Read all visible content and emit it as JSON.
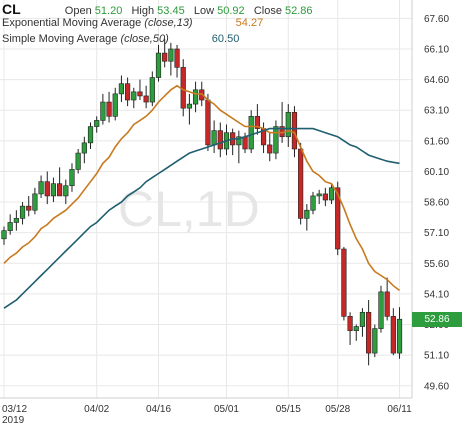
{
  "header": {
    "symbol": "CL",
    "open_label": "Open",
    "open_value": "51.20",
    "high_label": "High",
    "high_value": "53.45",
    "low_label": "Low",
    "low_value": "50.92",
    "close_label": "Close",
    "close_value": "52.86",
    "ema_label": "Exponential Moving Average",
    "ema_params": "(close,13)",
    "ema_value": "54.27",
    "sma_label": "Simple Moving Average",
    "sma_params": "(close,50)",
    "sma_value": "60.50"
  },
  "watermark": "CL,1D",
  "last_price_badge": "52.86",
  "colors": {
    "up": "#2e9d3e",
    "down": "#c62828",
    "ema": "#c87a1f",
    "sma": "#1f5f70",
    "grid": "#e8e8e8",
    "badge": "#2e9d3e"
  },
  "chart_data": {
    "type": "candlestick",
    "title": "CL",
    "xlabel": "",
    "ylabel": "",
    "ylim": [
      49.0,
      68.5
    ],
    "y_ticks": [
      "67.60",
      "66.10",
      "64.60",
      "63.10",
      "61.60",
      "60.10",
      "58.60",
      "57.10",
      "55.60",
      "54.10",
      "52.60",
      "51.10",
      "49.60"
    ],
    "x_ticks": [
      {
        "label": "03/12",
        "sub": "2019",
        "index": 0
      },
      {
        "label": "04/02",
        "index": 15
      },
      {
        "label": "04/16",
        "index": 25
      },
      {
        "label": "05/01",
        "index": 36
      },
      {
        "label": "05/15",
        "index": 46
      },
      {
        "label": "05/28",
        "index": 54
      },
      {
        "label": "06/11",
        "index": 64
      }
    ],
    "candles": [
      [
        56.8,
        57.4,
        56.5,
        57.2
      ],
      [
        57.2,
        58.0,
        57.0,
        57.6
      ],
      [
        57.6,
        58.2,
        57.2,
        57.8
      ],
      [
        57.8,
        58.6,
        57.5,
        58.4
      ],
      [
        58.4,
        58.9,
        57.9,
        58.2
      ],
      [
        58.2,
        59.3,
        58.0,
        59.0
      ],
      [
        59.0,
        59.9,
        58.8,
        59.6
      ],
      [
        59.6,
        60.1,
        58.5,
        58.9
      ],
      [
        58.9,
        59.8,
        58.6,
        59.5
      ],
      [
        59.5,
        60.3,
        59.0,
        58.9
      ],
      [
        58.9,
        59.7,
        58.5,
        59.4
      ],
      [
        59.4,
        60.5,
        59.1,
        60.2
      ],
      [
        60.2,
        61.2,
        60.0,
        61.0
      ],
      [
        61.0,
        61.8,
        60.5,
        61.5
      ],
      [
        61.5,
        62.5,
        61.2,
        62.3
      ],
      [
        62.3,
        62.8,
        62.0,
        62.6
      ],
      [
        62.6,
        63.9,
        62.4,
        63.5
      ],
      [
        63.5,
        64.0,
        62.5,
        62.8
      ],
      [
        62.8,
        64.2,
        62.6,
        63.9
      ],
      [
        63.9,
        64.8,
        63.5,
        64.4
      ],
      [
        64.4,
        64.7,
        63.3,
        63.6
      ],
      [
        63.6,
        64.2,
        63.2,
        64.0
      ],
      [
        64.0,
        64.6,
        63.6,
        63.8
      ],
      [
        63.8,
        64.3,
        63.2,
        63.5
      ],
      [
        63.5,
        65.0,
        63.3,
        64.7
      ],
      [
        64.7,
        66.3,
        64.5,
        65.9
      ],
      [
        65.9,
        66.6,
        65.2,
        65.5
      ],
      [
        65.5,
        66.4,
        64.8,
        66.1
      ],
      [
        66.1,
        66.3,
        64.7,
        65.2
      ],
      [
        65.2,
        65.6,
        62.8,
        63.2
      ],
      [
        63.2,
        63.9,
        62.4,
        63.4
      ],
      [
        63.4,
        64.5,
        63.0,
        64.1
      ],
      [
        64.1,
        64.5,
        63.3,
        63.6
      ],
      [
        63.6,
        63.9,
        61.1,
        61.4
      ],
      [
        61.4,
        62.6,
        61.0,
        62.1
      ],
      [
        62.1,
        62.5,
        60.8,
        61.2
      ],
      [
        61.2,
        62.4,
        60.9,
        62.0
      ],
      [
        62.0,
        62.2,
        60.9,
        61.4
      ],
      [
        61.4,
        62.1,
        60.5,
        61.8
      ],
      [
        61.8,
        62.0,
        61.0,
        61.2
      ],
      [
        61.2,
        63.1,
        61.0,
        62.8
      ],
      [
        62.8,
        63.4,
        61.9,
        62.2
      ],
      [
        62.2,
        62.5,
        61.0,
        61.4
      ],
      [
        61.4,
        62.0,
        60.6,
        61.0
      ],
      [
        61.0,
        62.6,
        60.7,
        62.3
      ],
      [
        62.3,
        63.5,
        61.5,
        61.8
      ],
      [
        61.8,
        63.4,
        61.3,
        63.0
      ],
      [
        63.0,
        63.3,
        60.8,
        61.2
      ],
      [
        61.2,
        61.5,
        57.5,
        57.8
      ],
      [
        57.8,
        58.5,
        57.2,
        58.2
      ],
      [
        58.2,
        59.1,
        58.0,
        58.9
      ],
      [
        58.9,
        59.2,
        58.5,
        59.0
      ],
      [
        59.0,
        59.3,
        58.4,
        58.7
      ],
      [
        58.7,
        59.5,
        58.5,
        59.3
      ],
      [
        59.3,
        59.6,
        56.0,
        56.3
      ],
      [
        56.3,
        56.4,
        52.8,
        53.0
      ],
      [
        53.0,
        53.2,
        51.6,
        52.3
      ],
      [
        52.3,
        52.6,
        51.8,
        52.5
      ],
      [
        52.5,
        53.4,
        52.0,
        53.2
      ],
      [
        53.2,
        53.8,
        50.6,
        51.2
      ],
      [
        51.2,
        52.6,
        51.0,
        52.4
      ],
      [
        52.4,
        54.5,
        52.2,
        54.2
      ],
      [
        54.2,
        54.9,
        52.8,
        53.0
      ],
      [
        53.0,
        53.4,
        51.1,
        51.2
      ],
      [
        51.2,
        53.45,
        50.92,
        52.86
      ]
    ],
    "ema": {
      "name": "Exponential Moving Average (close,13)",
      "values": [
        55.6,
        55.9,
        56.1,
        56.4,
        56.6,
        56.9,
        57.3,
        57.5,
        57.8,
        58.0,
        58.2,
        58.5,
        58.8,
        59.2,
        59.6,
        60.0,
        60.5,
        60.8,
        61.3,
        61.7,
        62.0,
        62.4,
        62.6,
        62.8,
        63.1,
        63.5,
        63.8,
        64.1,
        64.3,
        64.1,
        64.0,
        63.9,
        63.9,
        63.6,
        63.4,
        63.1,
        62.9,
        62.7,
        62.5,
        62.3,
        62.3,
        62.3,
        62.2,
        62.0,
        62.0,
        62.0,
        62.1,
        62.0,
        61.3,
        60.6,
        60.1,
        59.9,
        59.6,
        59.5,
        59.0,
        58.3,
        57.5,
        56.8,
        56.3,
        55.6,
        55.2,
        55.0,
        54.8,
        54.5,
        54.27
      ]
    },
    "sma": {
      "name": "Simple Moving Average (close,50)",
      "values": [
        53.4,
        53.6,
        53.8,
        54.1,
        54.4,
        54.7,
        55.0,
        55.3,
        55.6,
        55.9,
        56.2,
        56.5,
        56.8,
        57.1,
        57.4,
        57.6,
        57.9,
        58.2,
        58.4,
        58.6,
        58.9,
        59.1,
        59.3,
        59.6,
        59.8,
        60.0,
        60.2,
        60.4,
        60.6,
        60.8,
        61.0,
        61.1,
        61.2,
        61.3,
        61.4,
        61.5,
        61.6,
        61.7,
        61.7,
        61.8,
        61.9,
        62.0,
        62.1,
        62.2,
        62.2,
        62.2,
        62.2,
        62.2,
        62.2,
        62.2,
        62.2,
        62.1,
        62.0,
        61.9,
        61.8,
        61.6,
        61.4,
        61.3,
        61.1,
        60.9,
        60.8,
        60.7,
        60.6,
        60.55,
        60.5
      ]
    }
  }
}
